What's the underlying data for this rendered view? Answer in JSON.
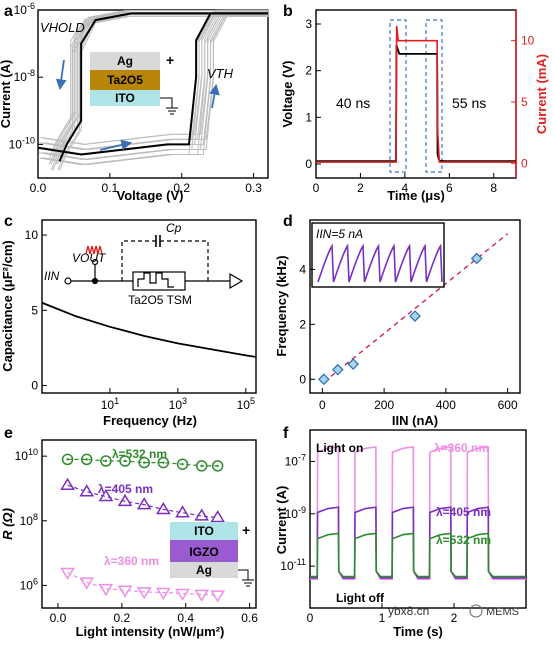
{
  "chart_data": [
    {
      "panel": "a",
      "type": "line",
      "xlabel": "Voltage (V)",
      "ylabel": "Current (A)",
      "xlim": [
        0,
        0.32
      ],
      "ylim_log10": [
        -11,
        -6
      ],
      "xticks": [
        "0.0",
        "0.1",
        "0.2",
        "0.3"
      ],
      "yticks": [
        "10-10",
        "10-8",
        "10-6"
      ],
      "annotations": {
        "vhold": "VHOLD",
        "vth": "VTH"
      },
      "stack": {
        "layer1": "Ag",
        "layer2": "Ta2O5",
        "layer3": "ITO",
        "plus": "+"
      },
      "series": [
        {
          "x": [
            0.0,
            0.06,
            0.1,
            0.14,
            0.18,
            0.21,
            0.22,
            0.22,
            0.24,
            0.32
          ],
          "y_log10": [
            -10.1,
            -10.3,
            -10.2,
            -10.1,
            -10.0,
            -10.0,
            -8.0,
            -6.9,
            -6.1,
            -6.1
          ]
        },
        {
          "x": [
            0.32,
            0.24,
            0.2,
            0.13,
            0.08,
            0.06,
            0.06,
            0.04,
            0.03
          ],
          "y_log10": [
            -6.1,
            -6.1,
            -6.1,
            -6.1,
            -6.3,
            -7.0,
            -9.3,
            -10.0,
            -10.5
          ]
        }
      ]
    },
    {
      "panel": "b",
      "type": "line",
      "xlabel": "Time (μs)",
      "ylabel": "Voltage (V)",
      "ylabel_right": "Current (mA)",
      "xlim": [
        0,
        9
      ],
      "ylim": [
        -0.3,
        3.3
      ],
      "ylim_right": [
        -1.2,
        12.5
      ],
      "xticks": [
        "0",
        "2",
        "4",
        "6",
        "8"
      ],
      "yticks": [
        "0",
        "1",
        "2",
        "3"
      ],
      "yticks_right": [
        "0",
        "5",
        "10"
      ],
      "annotations": {
        "delay1": "40 ns",
        "delay2": "55 ns"
      },
      "series": [
        {
          "axis": "left",
          "x": [
            0,
            3.6,
            3.62,
            3.75,
            3.9,
            5.45,
            5.47,
            5.55,
            5.8,
            9
          ],
          "y": [
            0.06,
            0.06,
            2.55,
            2.36,
            2.36,
            2.36,
            0.2,
            0.07,
            0.06,
            0.06
          ]
        },
        {
          "axis": "right",
          "x": [
            0,
            3.6,
            3.63,
            3.7,
            5.45,
            5.48,
            5.55,
            9
          ],
          "y": [
            0.1,
            0.1,
            11.2,
            10.0,
            10.0,
            2.5,
            0.1,
            0.1
          ]
        }
      ]
    },
    {
      "panel": "c",
      "type": "line",
      "xlabel": "Frequency (Hz)",
      "ylabel": "Capacitance (μF²/cm)",
      "xscale": "log",
      "xlim": [
        0.1,
        200000
      ],
      "ylim": [
        -0.5,
        11
      ],
      "xticks": [
        "101",
        "103",
        "105"
      ],
      "yticks": [
        "0",
        "5",
        "10"
      ],
      "circuit": {
        "vout": "VOUT",
        "iin": "IIN",
        "cp": "Cp",
        "tsm": "Ta2O5 TSM"
      },
      "x": [
        0.1,
        1,
        10,
        100,
        1000,
        10000,
        100000,
        200000
      ],
      "y": [
        5.5,
        4.6,
        3.9,
        3.3,
        2.8,
        2.4,
        2.0,
        1.9
      ]
    },
    {
      "panel": "d",
      "type": "scatter",
      "xlabel": "IIN (nA)",
      "ylabel": "Frequency (kHz)",
      "xlim": [
        -40,
        640
      ],
      "ylim": [
        -0.5,
        5.8
      ],
      "xticks": [
        "0",
        "200",
        "400",
        "600"
      ],
      "yticks": [
        "0",
        "2",
        "4"
      ],
      "inset_label": "IIN=5 nA",
      "x": [
        5,
        50,
        100,
        300,
        500
      ],
      "y": [
        0.0,
        0.35,
        0.55,
        2.3,
        4.4
      ],
      "fit": {
        "x": [
          5,
          600
        ],
        "y": [
          -0.1,
          5.3
        ]
      }
    },
    {
      "panel": "e",
      "type": "line",
      "xlabel": "Light intensity (nW/μm²)",
      "ylabel": "R (Ω)",
      "xlim": [
        -0.05,
        0.62
      ],
      "ylim_log10": [
        5.3,
        10.5
      ],
      "xticks": [
        "0.0",
        "0.2",
        "0.4",
        "0.6"
      ],
      "yticks": [
        "106",
        "108",
        "1010"
      ],
      "stack": {
        "layer1": "ITO",
        "layer2": "IGZO",
        "layer3": "Ag",
        "plus": "+"
      },
      "series": [
        {
          "name": "λ=532 nm",
          "color": "#2e8b2e",
          "x": [
            0.03,
            0.09,
            0.15,
            0.21,
            0.27,
            0.33,
            0.39,
            0.45,
            0.5
          ],
          "y_log10": [
            9.9,
            9.9,
            9.85,
            9.85,
            9.8,
            9.8,
            9.75,
            9.7,
            9.7
          ]
        },
        {
          "name": "λ=405 nm",
          "color": "#7a2fc0",
          "x": [
            0.03,
            0.09,
            0.15,
            0.21,
            0.27,
            0.33,
            0.39,
            0.45,
            0.5
          ],
          "y_log10": [
            9.1,
            8.9,
            8.75,
            8.6,
            8.5,
            8.35,
            8.25,
            8.15,
            8.1
          ]
        },
        {
          "name": "λ=360 nm",
          "color": "#ee8ee8",
          "x": [
            0.03,
            0.09,
            0.15,
            0.21,
            0.27,
            0.33,
            0.39,
            0.45,
            0.5
          ],
          "y_log10": [
            6.4,
            6.1,
            5.9,
            5.85,
            5.8,
            5.78,
            5.75,
            5.72,
            5.7
          ]
        }
      ]
    },
    {
      "panel": "f",
      "type": "line",
      "xlabel": "Time (s)",
      "ylabel": "Current (A)",
      "xlim": [
        0,
        3
      ],
      "ylim_log10": [
        -12.6,
        -5.8
      ],
      "xticks": [
        "0",
        "1",
        "2"
      ],
      "yticks": [
        "10-11",
        "10-9",
        "10-7"
      ],
      "annotations": {
        "on": "Light on",
        "off": "Light off"
      },
      "pulses": [
        [
          0.1,
          0.4
        ],
        [
          0.62,
          0.92
        ],
        [
          1.14,
          1.44
        ],
        [
          1.66,
          1.96
        ],
        [
          2.18,
          2.48
        ]
      ],
      "off_level_log10": -11.5,
      "series": [
        {
          "name": "λ=360 nm",
          "color": "#ee8ee8",
          "on_level_log10": -6.5
        },
        {
          "name": "λ=405 nm",
          "color": "#7a2fc0",
          "on_level_log10": -8.8
        },
        {
          "name": "λ=532 nm",
          "color": "#2e8b2e",
          "on_level_log10": -9.8
        }
      ]
    }
  ],
  "panel_labels": [
    "a",
    "b",
    "c",
    "d",
    "e",
    "f"
  ],
  "watermark": {
    "site": "ybx8.cn",
    "brand": "MEMS"
  }
}
